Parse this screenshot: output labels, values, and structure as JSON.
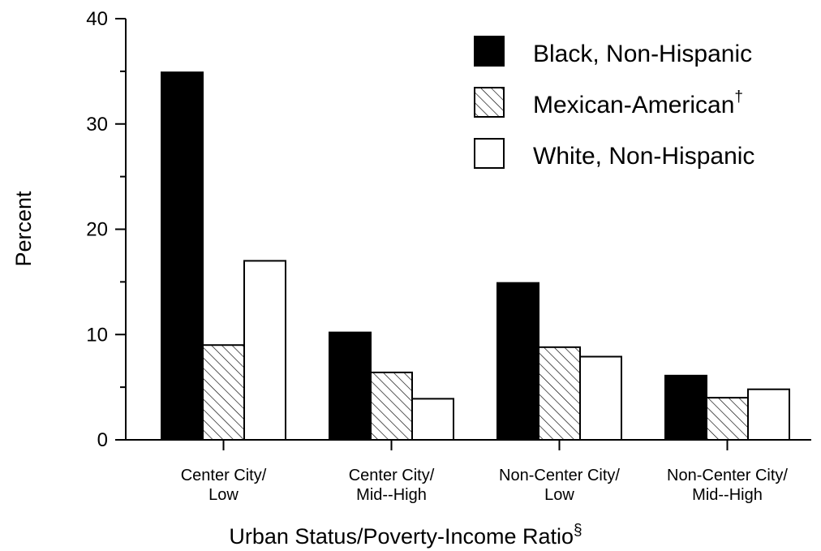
{
  "chart_data": {
    "type": "bar",
    "title": "",
    "xlabel": "Urban Status/Poverty-Income Ratio",
    "xlabel_superscript": "§",
    "ylabel": "Percent",
    "ylim": [
      0,
      40
    ],
    "yticks": [
      0,
      10,
      20,
      30,
      40
    ],
    "minor_yticks": [
      5,
      15,
      25,
      35
    ],
    "grid": false,
    "legend_position": "top-right",
    "categories": [
      [
        "Center City/",
        "Low"
      ],
      [
        "Center City/",
        "Mid--High"
      ],
      [
        "Non-Center City/",
        "Low"
      ],
      [
        "Non-Center City/",
        "Mid--High"
      ]
    ],
    "series": [
      {
        "name": "Black, Non-Hispanic",
        "name_superscript": "",
        "fill": "solid",
        "color": "#000000",
        "values": [
          34.9,
          10.2,
          14.9,
          6.1
        ]
      },
      {
        "name": "Mexican-American",
        "name_superscript": "†",
        "fill": "hatched",
        "color": "#000000",
        "values": [
          9.0,
          6.4,
          8.8,
          4.0
        ]
      },
      {
        "name": "White, Non-Hispanic",
        "name_superscript": "",
        "fill": "open",
        "color": "#ffffff",
        "values": [
          17.0,
          3.9,
          7.9,
          4.8
        ]
      }
    ]
  }
}
